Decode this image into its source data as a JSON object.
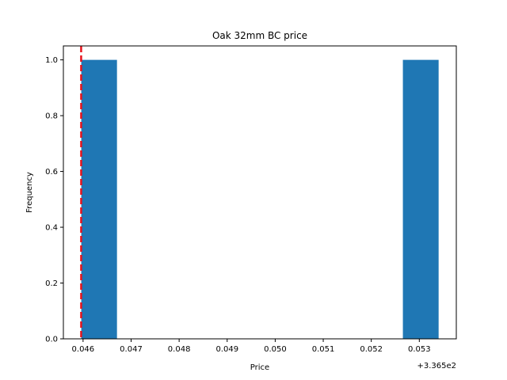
{
  "chart_data": {
    "type": "histogram",
    "title": "Oak 32mm BC price",
    "xlabel": "Price",
    "ylabel": "Frequency",
    "x_offset_label": "+3.365e2",
    "x_ticks": [
      "0.046",
      "0.047",
      "0.048",
      "0.049",
      "0.050",
      "0.051",
      "0.052",
      "0.053"
    ],
    "x_tick_values": [
      0.046,
      0.047,
      0.048,
      0.049,
      0.05,
      0.051,
      0.052,
      0.053
    ],
    "y_ticks": [
      "0.0",
      "0.2",
      "0.4",
      "0.6",
      "0.8",
      "1.0"
    ],
    "y_tick_values": [
      0.0,
      0.2,
      0.4,
      0.6,
      0.8,
      1.0
    ],
    "xlim": [
      0.04559,
      0.05377
    ],
    "ylim": [
      0,
      1.05
    ],
    "bins": [
      {
        "x0": 0.045962,
        "x1": 0.046706,
        "count": 1
      },
      {
        "x0": 0.052658,
        "x1": 0.053402,
        "count": 1
      }
    ],
    "reference_line": {
      "x": 0.04596,
      "style": "dashed",
      "color": "#e8141c"
    },
    "bar_color": "#1f77b4",
    "grid": false,
    "legend": "none"
  }
}
